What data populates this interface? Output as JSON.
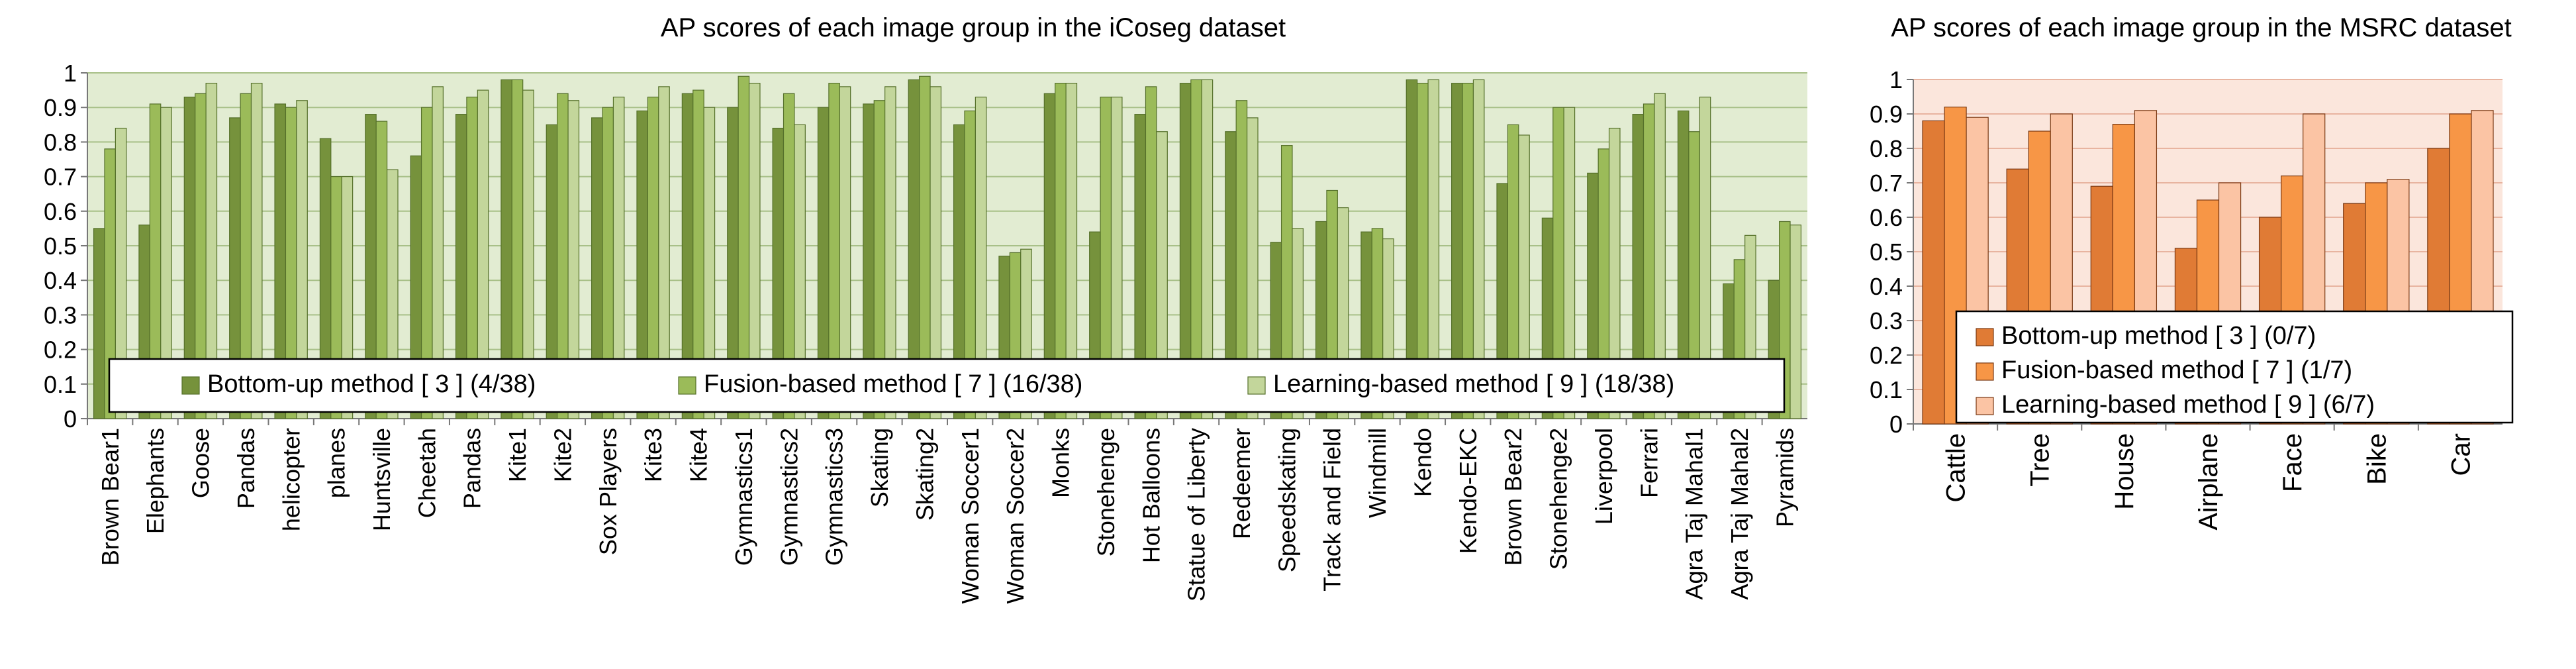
{
  "chart_data": [
    {
      "type": "bar",
      "title": "AP scores of each image group in the iCoseg dataset",
      "xlabel": "",
      "ylabel": "",
      "ylim": [
        0,
        1
      ],
      "yticks": [
        0,
        0.1,
        0.2,
        0.3,
        0.4,
        0.5,
        0.6,
        0.7,
        0.8,
        0.9,
        1
      ],
      "ytick_labels": [
        "0",
        "0.1",
        "0.2",
        "0.3",
        "0.4",
        "0.5",
        "0.6",
        "0.7",
        "0.8",
        "0.9",
        "1"
      ],
      "grid": true,
      "legend_position": "bottom-inside",
      "background_color": "#e2ecd2",
      "categories": [
        "Brown Bear1",
        "Elephants",
        "Goose",
        "Pandas",
        "helicopter",
        "planes",
        "Huntsville",
        "Cheetah",
        "Pandas",
        "Kite1",
        "Kite2",
        "Sox Players",
        "Kite3",
        "Kite4",
        "Gymnastics1",
        "Gymnastics2",
        "Gymnastics3",
        "Skating",
        "Skating2",
        "Woman Soccer1",
        "Woman Soccer2",
        "Monks",
        "Stonehenge",
        "Hot Balloons",
        "Statue of Liberty",
        "Redeemer",
        "Speedskating",
        "Track and Field",
        "Windmill",
        "Kendo",
        "Kendo-EKC",
        "Brown Bear2",
        "Stonehenge2",
        "Liverpool",
        "Ferrari",
        "Agra Taj Mahal1",
        "Agra Taj Mahal2",
        "Pyramids"
      ],
      "series": [
        {
          "name": "Bottom-up method [ 3 ] (4/38)",
          "color": "#76923c",
          "values": [
            0.55,
            0.56,
            0.93,
            0.87,
            0.91,
            0.81,
            0.88,
            0.76,
            0.88,
            0.98,
            0.85,
            0.87,
            0.89,
            0.94,
            0.9,
            0.84,
            0.9,
            0.91,
            0.98,
            0.85,
            0.47,
            0.94,
            0.54,
            0.88,
            0.97,
            0.83,
            0.51,
            0.57,
            0.54,
            0.98,
            0.97,
            0.68,
            0.58,
            0.71,
            0.88,
            0.89,
            0.39,
            0.4
          ]
        },
        {
          "name": "Fusion-based method [ 7 ] (16/38)",
          "color": "#9bbb59",
          "values": [
            0.78,
            0.91,
            0.94,
            0.94,
            0.9,
            0.7,
            0.86,
            0.9,
            0.93,
            0.98,
            0.94,
            0.9,
            0.93,
            0.95,
            0.99,
            0.94,
            0.97,
            0.92,
            0.99,
            0.89,
            0.48,
            0.97,
            0.93,
            0.96,
            0.98,
            0.92,
            0.79,
            0.66,
            0.55,
            0.97,
            0.97,
            0.85,
            0.9,
            0.78,
            0.91,
            0.83,
            0.46,
            0.57
          ]
        },
        {
          "name": "Learning-based method [ 9 ] (18/38)",
          "color": "#c3d69b",
          "values": [
            0.84,
            0.9,
            0.97,
            0.97,
            0.92,
            0.7,
            0.72,
            0.96,
            0.95,
            0.95,
            0.92,
            0.93,
            0.96,
            0.9,
            0.97,
            0.85,
            0.96,
            0.96,
            0.96,
            0.93,
            0.49,
            0.97,
            0.93,
            0.83,
            0.98,
            0.87,
            0.55,
            0.61,
            0.52,
            0.98,
            0.98,
            0.82,
            0.9,
            0.84,
            0.94,
            0.93,
            0.53,
            0.56
          ]
        }
      ]
    },
    {
      "type": "bar",
      "title": "AP scores of each image group in the MSRC dataset",
      "xlabel": "",
      "ylabel": "",
      "ylim": [
        0,
        1
      ],
      "yticks": [
        0,
        0.1,
        0.2,
        0.3,
        0.4,
        0.5,
        0.6,
        0.7,
        0.8,
        0.9,
        1
      ],
      "ytick_labels": [
        "0",
        "0.1",
        "0.2",
        "0.3",
        "0.4",
        "0.5",
        "0.6",
        "0.7",
        "0.8",
        "0.9",
        "1"
      ],
      "grid": true,
      "legend_position": "bottom-inside",
      "background_color": "#fbe6dc",
      "categories": [
        "Cattle",
        "Tree",
        "House",
        "Airplane",
        "Face",
        "Bike",
        "Car"
      ],
      "series": [
        {
          "name": "Bottom-up method [ 3 ] (0/7)",
          "color": "#e07b35",
          "values": [
            0.88,
            0.74,
            0.69,
            0.51,
            0.6,
            0.64,
            0.8
          ]
        },
        {
          "name": "Fusion-based method [ 7 ] (1/7)",
          "color": "#f79646",
          "values": [
            0.92,
            0.85,
            0.87,
            0.65,
            0.72,
            0.7,
            0.9
          ]
        },
        {
          "name": "Learning-based method [ 9 ] (6/7)",
          "color": "#fbc4a4",
          "values": [
            0.89,
            0.9,
            0.91,
            0.7,
            0.9,
            0.71,
            0.91
          ]
        }
      ]
    }
  ]
}
